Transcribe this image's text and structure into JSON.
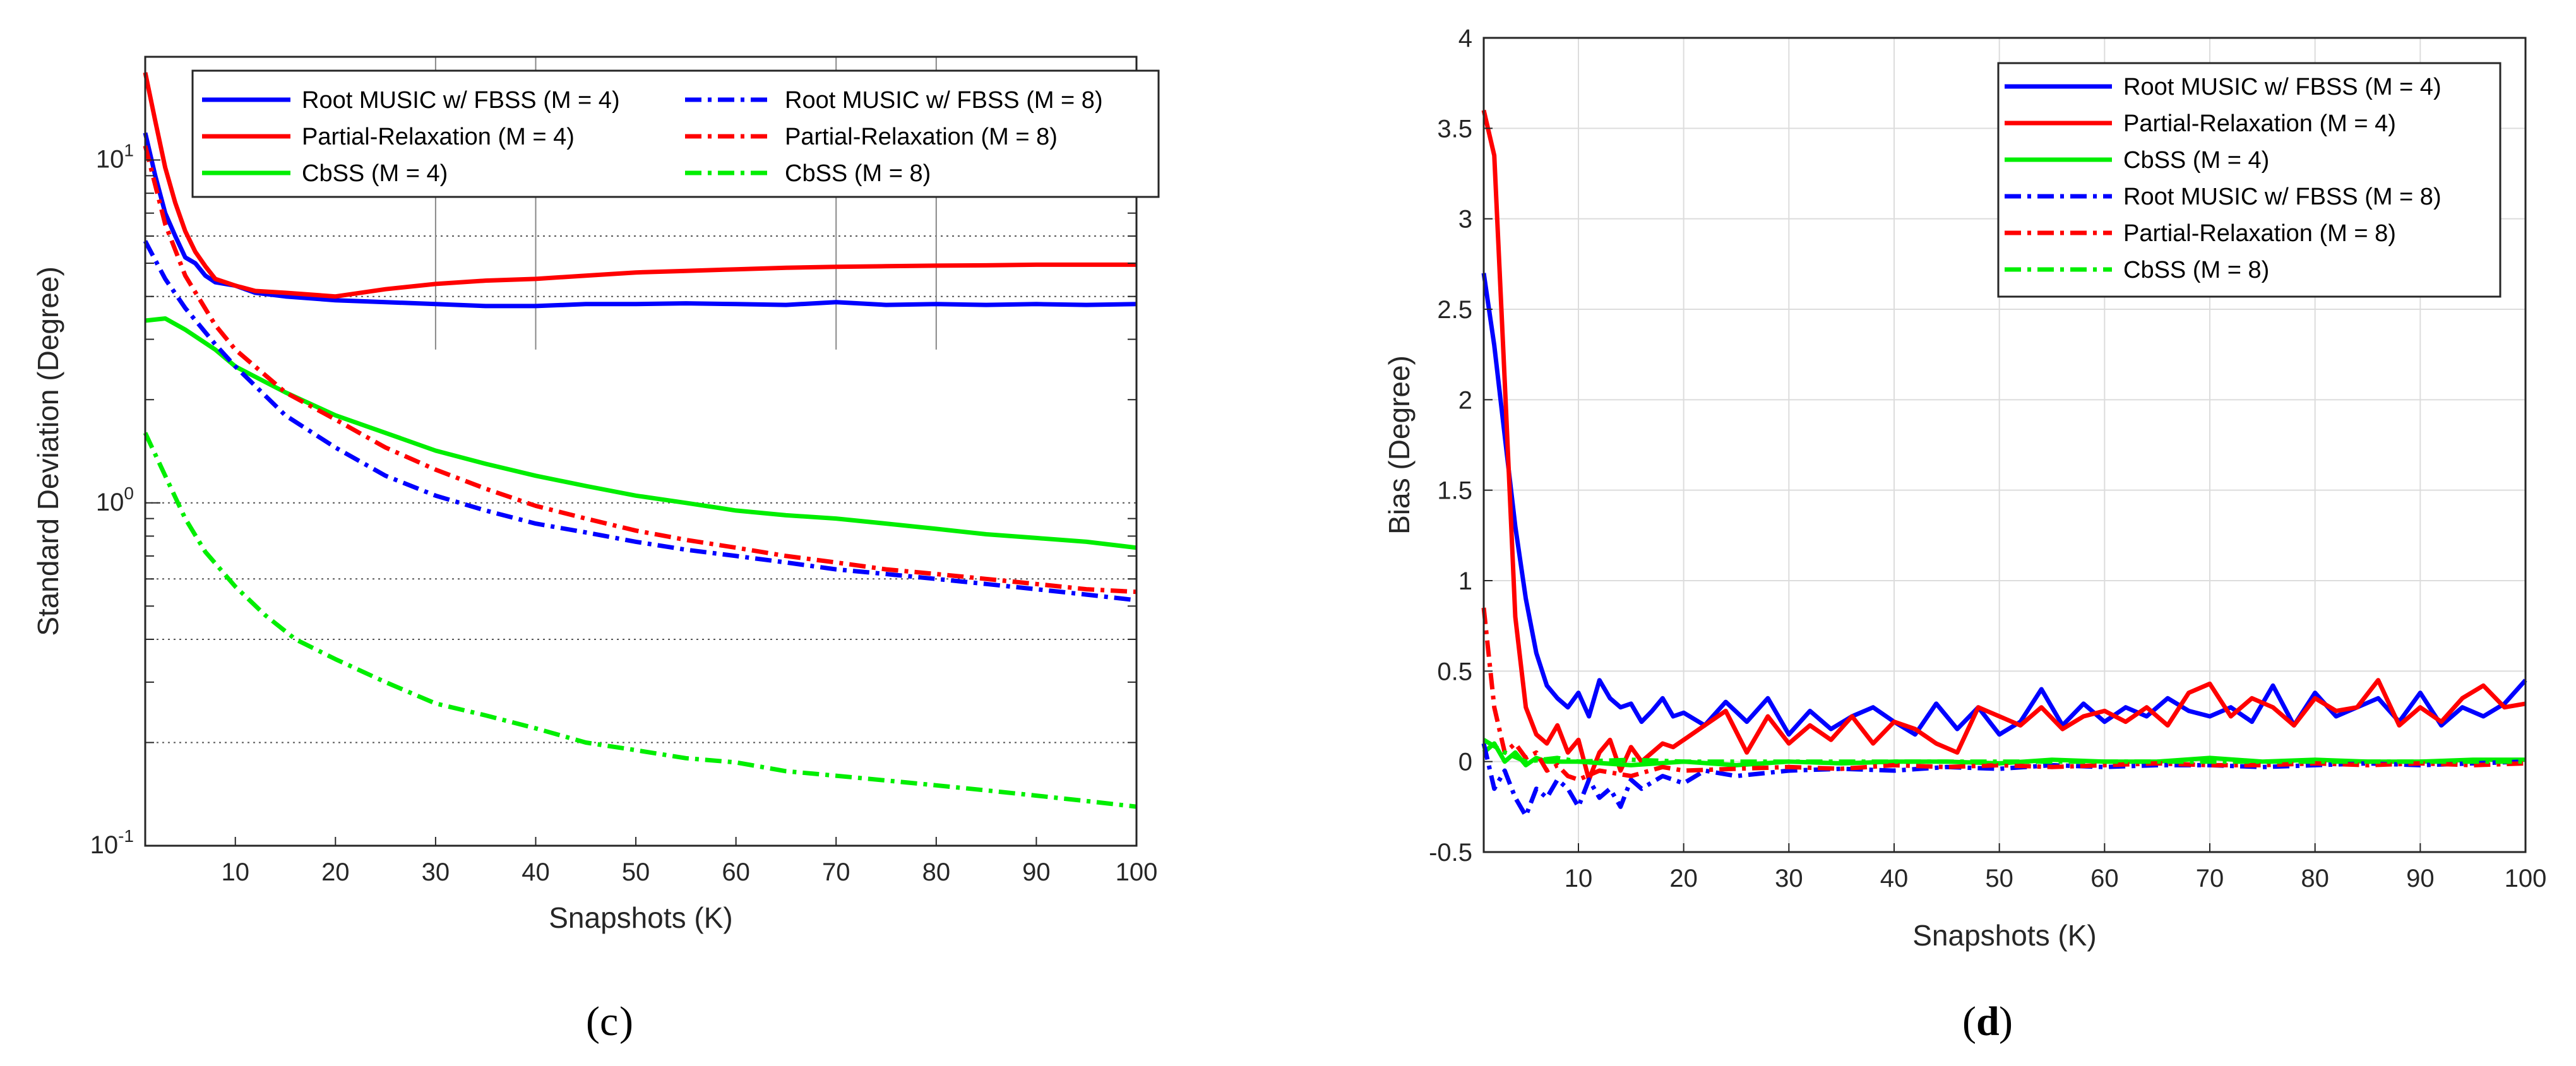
{
  "chart_data": [
    {
      "type": "line",
      "panel": "c",
      "xlabel": "Snapshots (K)",
      "ylabel": "Standard Deviation (Degree)",
      "yscale": "log",
      "xlim": [
        1,
        100
      ],
      "ylim": [
        0.1,
        20
      ],
      "xticks": [
        "10",
        "20",
        "30",
        "40",
        "50",
        "60",
        "70",
        "80",
        "90",
        "100"
      ],
      "yticks": [
        {
          "base": "10",
          "exp": "1"
        },
        {
          "base": "10",
          "exp": "0"
        },
        {
          "base": "10",
          "exp": "-1"
        }
      ],
      "legend": {
        "position": "top",
        "columns": 2
      },
      "colors": {
        "blue": "#0000ff",
        "red": "#ff0000",
        "green": "#00ee00"
      },
      "series": [
        {
          "name": "Root MUSIC w/ FBSS (M = 4)",
          "color": "#0000ff",
          "style": "solid",
          "x": [
            1,
            2,
            3,
            4,
            5,
            6,
            7,
            8,
            10,
            12,
            15,
            20,
            25,
            30,
            35,
            40,
            45,
            50,
            55,
            60,
            65,
            70,
            75,
            80,
            85,
            90,
            95,
            100
          ],
          "values": [
            12,
            9,
            7,
            6,
            5.2,
            5.0,
            4.6,
            4.4,
            4.3,
            4.1,
            4.0,
            3.9,
            3.85,
            3.8,
            3.75,
            3.75,
            3.8,
            3.8,
            3.82,
            3.8,
            3.78,
            3.85,
            3.78,
            3.8,
            3.78,
            3.8,
            3.78,
            3.8
          ]
        },
        {
          "name": "Partial-Relaxation (M = 4)",
          "color": "#ff0000",
          "style": "solid",
          "x": [
            1,
            2,
            3,
            4,
            5,
            6,
            7,
            8,
            10,
            12,
            15,
            20,
            25,
            30,
            35,
            40,
            45,
            50,
            55,
            60,
            65,
            70,
            75,
            80,
            85,
            90,
            95,
            100
          ],
          "values": [
            18,
            13,
            9.5,
            7.5,
            6.2,
            5.4,
            4.9,
            4.5,
            4.3,
            4.15,
            4.1,
            4.0,
            4.2,
            4.35,
            4.45,
            4.5,
            4.6,
            4.7,
            4.75,
            4.8,
            4.85,
            4.88,
            4.9,
            4.92,
            4.93,
            4.95,
            4.95,
            4.95
          ]
        },
        {
          "name": "CbSS (M = 4)",
          "color": "#00ee00",
          "style": "solid",
          "x": [
            1,
            3,
            5,
            8,
            10,
            15,
            20,
            25,
            30,
            35,
            40,
            45,
            50,
            55,
            60,
            65,
            70,
            75,
            80,
            85,
            90,
            95,
            100
          ],
          "values": [
            3.4,
            3.45,
            3.2,
            2.8,
            2.5,
            2.1,
            1.8,
            1.6,
            1.42,
            1.3,
            1.2,
            1.12,
            1.05,
            1.0,
            0.95,
            0.92,
            0.9,
            0.87,
            0.84,
            0.81,
            0.79,
            0.77,
            0.74
          ]
        },
        {
          "name": "Root MUSIC w/ FBSS (M = 8)",
          "color": "#0000ff",
          "style": "dashdot",
          "x": [
            1,
            3,
            5,
            8,
            10,
            15,
            20,
            25,
            30,
            35,
            40,
            45,
            50,
            55,
            60,
            65,
            70,
            75,
            80,
            85,
            90,
            95,
            100
          ],
          "values": [
            5.8,
            4.5,
            3.7,
            2.9,
            2.5,
            1.8,
            1.45,
            1.2,
            1.05,
            0.95,
            0.87,
            0.82,
            0.77,
            0.73,
            0.7,
            0.67,
            0.64,
            0.62,
            0.6,
            0.58,
            0.56,
            0.54,
            0.52
          ]
        },
        {
          "name": "Partial-Relaxation (M = 8)",
          "color": "#ff0000",
          "style": "dashdot",
          "x": [
            1,
            3,
            5,
            8,
            10,
            15,
            20,
            25,
            30,
            35,
            40,
            45,
            50,
            55,
            60,
            65,
            70,
            75,
            80,
            85,
            90,
            95,
            100
          ],
          "values": [
            11,
            6.5,
            4.6,
            3.3,
            2.8,
            2.1,
            1.75,
            1.45,
            1.25,
            1.1,
            0.98,
            0.9,
            0.83,
            0.78,
            0.74,
            0.7,
            0.67,
            0.64,
            0.62,
            0.6,
            0.58,
            0.56,
            0.55
          ]
        },
        {
          "name": "CbSS (M = 8)",
          "color": "#00ee00",
          "style": "dashdot",
          "x": [
            1,
            3,
            5,
            7,
            10,
            13,
            16,
            20,
            25,
            30,
            35,
            40,
            45,
            50,
            55,
            60,
            65,
            70,
            75,
            80,
            85,
            90,
            95,
            100
          ],
          "values": [
            1.6,
            1.2,
            0.9,
            0.72,
            0.57,
            0.47,
            0.4,
            0.35,
            0.3,
            0.26,
            0.24,
            0.22,
            0.2,
            0.19,
            0.18,
            0.175,
            0.165,
            0.16,
            0.155,
            0.15,
            0.145,
            0.14,
            0.135,
            0.13
          ]
        }
      ]
    },
    {
      "type": "line",
      "panel": "d",
      "xlabel": "Snapshots (K)",
      "ylabel": "Bias (Degree)",
      "yscale": "linear",
      "xlim": [
        1,
        100
      ],
      "ylim": [
        -0.5,
        4
      ],
      "xticks": [
        "10",
        "20",
        "30",
        "40",
        "50",
        "60",
        "70",
        "80",
        "90",
        "100"
      ],
      "yticks": [
        "-0.5",
        "0",
        "0.5",
        "1",
        "1.5",
        "2",
        "2.5",
        "3",
        "3.5",
        "4"
      ],
      "legend": {
        "position": "top-right",
        "columns": 1
      },
      "series": [
        {
          "name": "Root MUSIC w/ FBSS (M = 4)",
          "color": "#0000ff",
          "style": "solid",
          "x": [
            1,
            2,
            3,
            4,
            5,
            6,
            7,
            8,
            9,
            10,
            11,
            12,
            13,
            14,
            15,
            16,
            17,
            18,
            19,
            20,
            22,
            24,
            26,
            28,
            30,
            32,
            34,
            36,
            38,
            40,
            42,
            44,
            46,
            48,
            50,
            52,
            54,
            56,
            58,
            60,
            62,
            64,
            66,
            68,
            70,
            72,
            74,
            76,
            78,
            80,
            82,
            84,
            86,
            88,
            90,
            92,
            94,
            96,
            98,
            100
          ],
          "values": [
            2.7,
            2.3,
            1.8,
            1.3,
            0.9,
            0.6,
            0.42,
            0.35,
            0.3,
            0.38,
            0.25,
            0.45,
            0.35,
            0.3,
            0.32,
            0.22,
            0.28,
            0.35,
            0.25,
            0.27,
            0.2,
            0.33,
            0.22,
            0.35,
            0.15,
            0.28,
            0.18,
            0.25,
            0.3,
            0.22,
            0.15,
            0.32,
            0.18,
            0.3,
            0.15,
            0.22,
            0.4,
            0.2,
            0.32,
            0.22,
            0.3,
            0.25,
            0.35,
            0.28,
            0.25,
            0.3,
            0.22,
            0.42,
            0.2,
            0.38,
            0.25,
            0.3,
            0.35,
            0.22,
            0.38,
            0.2,
            0.3,
            0.25,
            0.32,
            0.45
          ]
        },
        {
          "name": "Partial-Relaxation (M = 4)",
          "color": "#ff0000",
          "style": "solid",
          "x": [
            1,
            2,
            3,
            4,
            5,
            6,
            7,
            8,
            9,
            10,
            11,
            12,
            13,
            14,
            15,
            16,
            17,
            18,
            19,
            20,
            22,
            24,
            26,
            28,
            30,
            32,
            34,
            36,
            38,
            40,
            42,
            44,
            46,
            48,
            50,
            52,
            54,
            56,
            58,
            60,
            62,
            64,
            66,
            68,
            70,
            72,
            74,
            76,
            78,
            80,
            82,
            84,
            86,
            88,
            90,
            92,
            94,
            96,
            98,
            100
          ],
          "values": [
            3.6,
            3.35,
            2.1,
            0.8,
            0.3,
            0.15,
            0.1,
            0.2,
            0.05,
            0.12,
            -0.1,
            0.05,
            0.12,
            -0.05,
            0.08,
            0.0,
            0.05,
            0.1,
            0.08,
            0.12,
            0.2,
            0.28,
            0.05,
            0.25,
            0.1,
            0.2,
            0.12,
            0.25,
            0.1,
            0.22,
            0.18,
            0.1,
            0.05,
            0.3,
            0.25,
            0.2,
            0.3,
            0.18,
            0.25,
            0.28,
            0.22,
            0.3,
            0.2,
            0.38,
            0.43,
            0.25,
            0.35,
            0.3,
            0.2,
            0.35,
            0.28,
            0.3,
            0.45,
            0.2,
            0.3,
            0.22,
            0.35,
            0.42,
            0.3,
            0.32
          ]
        },
        {
          "name": "CbSS (M = 4)",
          "color": "#00ee00",
          "style": "solid",
          "x": [
            1,
            2,
            3,
            4,
            5,
            6,
            7,
            8,
            10,
            15,
            20,
            25,
            30,
            35,
            40,
            45,
            50,
            55,
            60,
            65,
            70,
            75,
            80,
            85,
            90,
            95,
            100
          ],
          "values": [
            0.05,
            0.1,
            0.0,
            0.05,
            -0.02,
            0.02,
            0.0,
            0.0,
            0.0,
            -0.02,
            0.0,
            -0.02,
            0.0,
            -0.01,
            0.0,
            0.0,
            -0.01,
            0.01,
            0.0,
            0.0,
            0.02,
            0.0,
            0.01,
            0.0,
            0.0,
            0.01,
            0.01
          ]
        },
        {
          "name": "Root MUSIC w/ FBSS (M = 8)",
          "color": "#0000ff",
          "style": "dashdot",
          "x": [
            1,
            2,
            3,
            4,
            5,
            6,
            7,
            8,
            9,
            10,
            11,
            12,
            13,
            14,
            15,
            16,
            18,
            20,
            22,
            25,
            30,
            35,
            40,
            45,
            50,
            55,
            60,
            65,
            70,
            75,
            80,
            85,
            90,
            95,
            100
          ],
          "values": [
            0.1,
            -0.15,
            -0.05,
            -0.2,
            -0.3,
            -0.15,
            -0.2,
            -0.1,
            -0.15,
            -0.25,
            -0.1,
            -0.2,
            -0.15,
            -0.25,
            -0.1,
            -0.15,
            -0.08,
            -0.12,
            -0.05,
            -0.08,
            -0.05,
            -0.04,
            -0.05,
            -0.03,
            -0.04,
            -0.02,
            -0.03,
            -0.02,
            -0.02,
            -0.03,
            -0.02,
            -0.01,
            -0.02,
            -0.01,
            0.0
          ]
        },
        {
          "name": "Partial-Relaxation (M = 8)",
          "color": "#ff0000",
          "style": "dashdot",
          "x": [
            1,
            2,
            3,
            4,
            5,
            6,
            7,
            8,
            9,
            10,
            12,
            15,
            18,
            20,
            25,
            30,
            35,
            40,
            45,
            50,
            55,
            60,
            65,
            70,
            75,
            80,
            85,
            90,
            95,
            100
          ],
          "values": [
            0.85,
            0.3,
            0.05,
            0.1,
            0.02,
            0.05,
            -0.05,
            -0.02,
            -0.08,
            -0.1,
            -0.05,
            -0.08,
            -0.03,
            -0.05,
            -0.04,
            -0.03,
            -0.04,
            -0.02,
            -0.03,
            -0.02,
            -0.03,
            -0.02,
            -0.01,
            -0.02,
            -0.02,
            -0.01,
            -0.02,
            -0.01,
            -0.02,
            -0.01
          ]
        },
        {
          "name": "CbSS (M = 8)",
          "color": "#00ee00",
          "style": "dashdot",
          "x": [
            1,
            3,
            5,
            8,
            10,
            15,
            20,
            25,
            30,
            40,
            50,
            60,
            70,
            80,
            90,
            100
          ],
          "values": [
            0.12,
            0.05,
            0.0,
            0.02,
            0.0,
            0.01,
            0.0,
            0.0,
            0.0,
            0.0,
            0.0,
            0.0,
            0.0,
            0.0,
            0.0,
            0.0
          ]
        }
      ]
    }
  ],
  "panels": {
    "left": "c",
    "right": "d"
  }
}
